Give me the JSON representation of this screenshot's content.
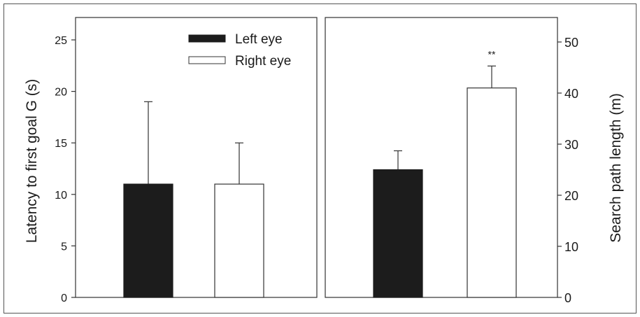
{
  "chart_data": [
    {
      "type": "bar",
      "panel": "left",
      "categories": [
        "Left eye",
        "Right eye"
      ],
      "series": [
        {
          "name": "Left eye",
          "category": "Left eye",
          "value": 11,
          "error": 8,
          "fill": "#1c1c1c"
        },
        {
          "name": "Right eye",
          "category": "Right eye",
          "value": 11,
          "error": 4,
          "fill": "#ffffff"
        }
      ],
      "ylabel": "Latency to first goal G (s)",
      "ylim": [
        0,
        26
      ],
      "yticks": [
        0,
        5,
        10,
        15,
        20,
        25
      ],
      "legend": {
        "placement": "top-right",
        "entries": [
          "Left eye",
          "Right eye"
        ]
      }
    },
    {
      "type": "bar",
      "panel": "right",
      "categories": [
        "Left eye",
        "Right eye"
      ],
      "series": [
        {
          "name": "Left eye",
          "category": "Left eye",
          "value": 25,
          "error": 3.7,
          "fill": "#1c1c1c"
        },
        {
          "name": "Right eye",
          "category": "Right eye",
          "value": 41,
          "error": 4.3,
          "fill": "#ffffff"
        }
      ],
      "ylabel": "Search path length (m)",
      "ylim": [
        0,
        54
      ],
      "yticks": [
        0,
        10,
        20,
        30,
        40,
        50
      ],
      "yaxis_side": "right",
      "annotations": [
        {
          "text": "**",
          "category": "Right eye"
        }
      ]
    }
  ],
  "colors": {
    "frame": "#333333",
    "bar_dark": "#1c1c1c",
    "bar_light": "#ffffff",
    "border": "#555555"
  }
}
